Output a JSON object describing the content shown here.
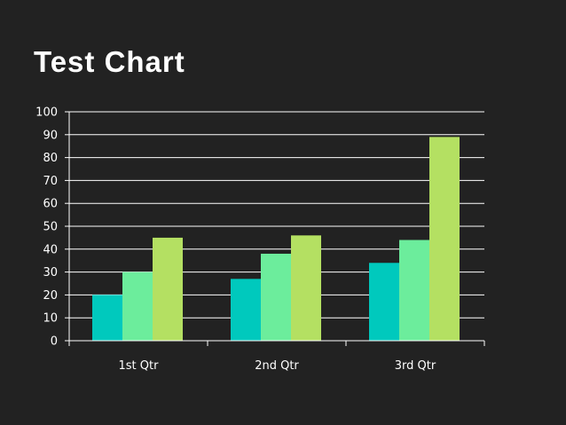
{
  "chart_data": {
    "type": "bar",
    "title": "Test Chart",
    "categories": [
      "1st Qtr",
      "2nd Qtr",
      "3rd Qtr"
    ],
    "series": [
      {
        "values": [
          20,
          27,
          34
        ],
        "color": "#00c9bd"
      },
      {
        "values": [
          30,
          38,
          44
        ],
        "color": "#6ced9c"
      },
      {
        "values": [
          45,
          46,
          89
        ],
        "color": "#b4e062"
      }
    ],
    "y_ticks": [
      "0",
      "10",
      "20",
      "30",
      "40",
      "50",
      "60",
      "70",
      "80",
      "90",
      "100"
    ],
    "ylim": [
      0,
      100
    ],
    "grid": true,
    "legend": "none",
    "background": "#222222",
    "gridline_color": "#ffffff"
  }
}
